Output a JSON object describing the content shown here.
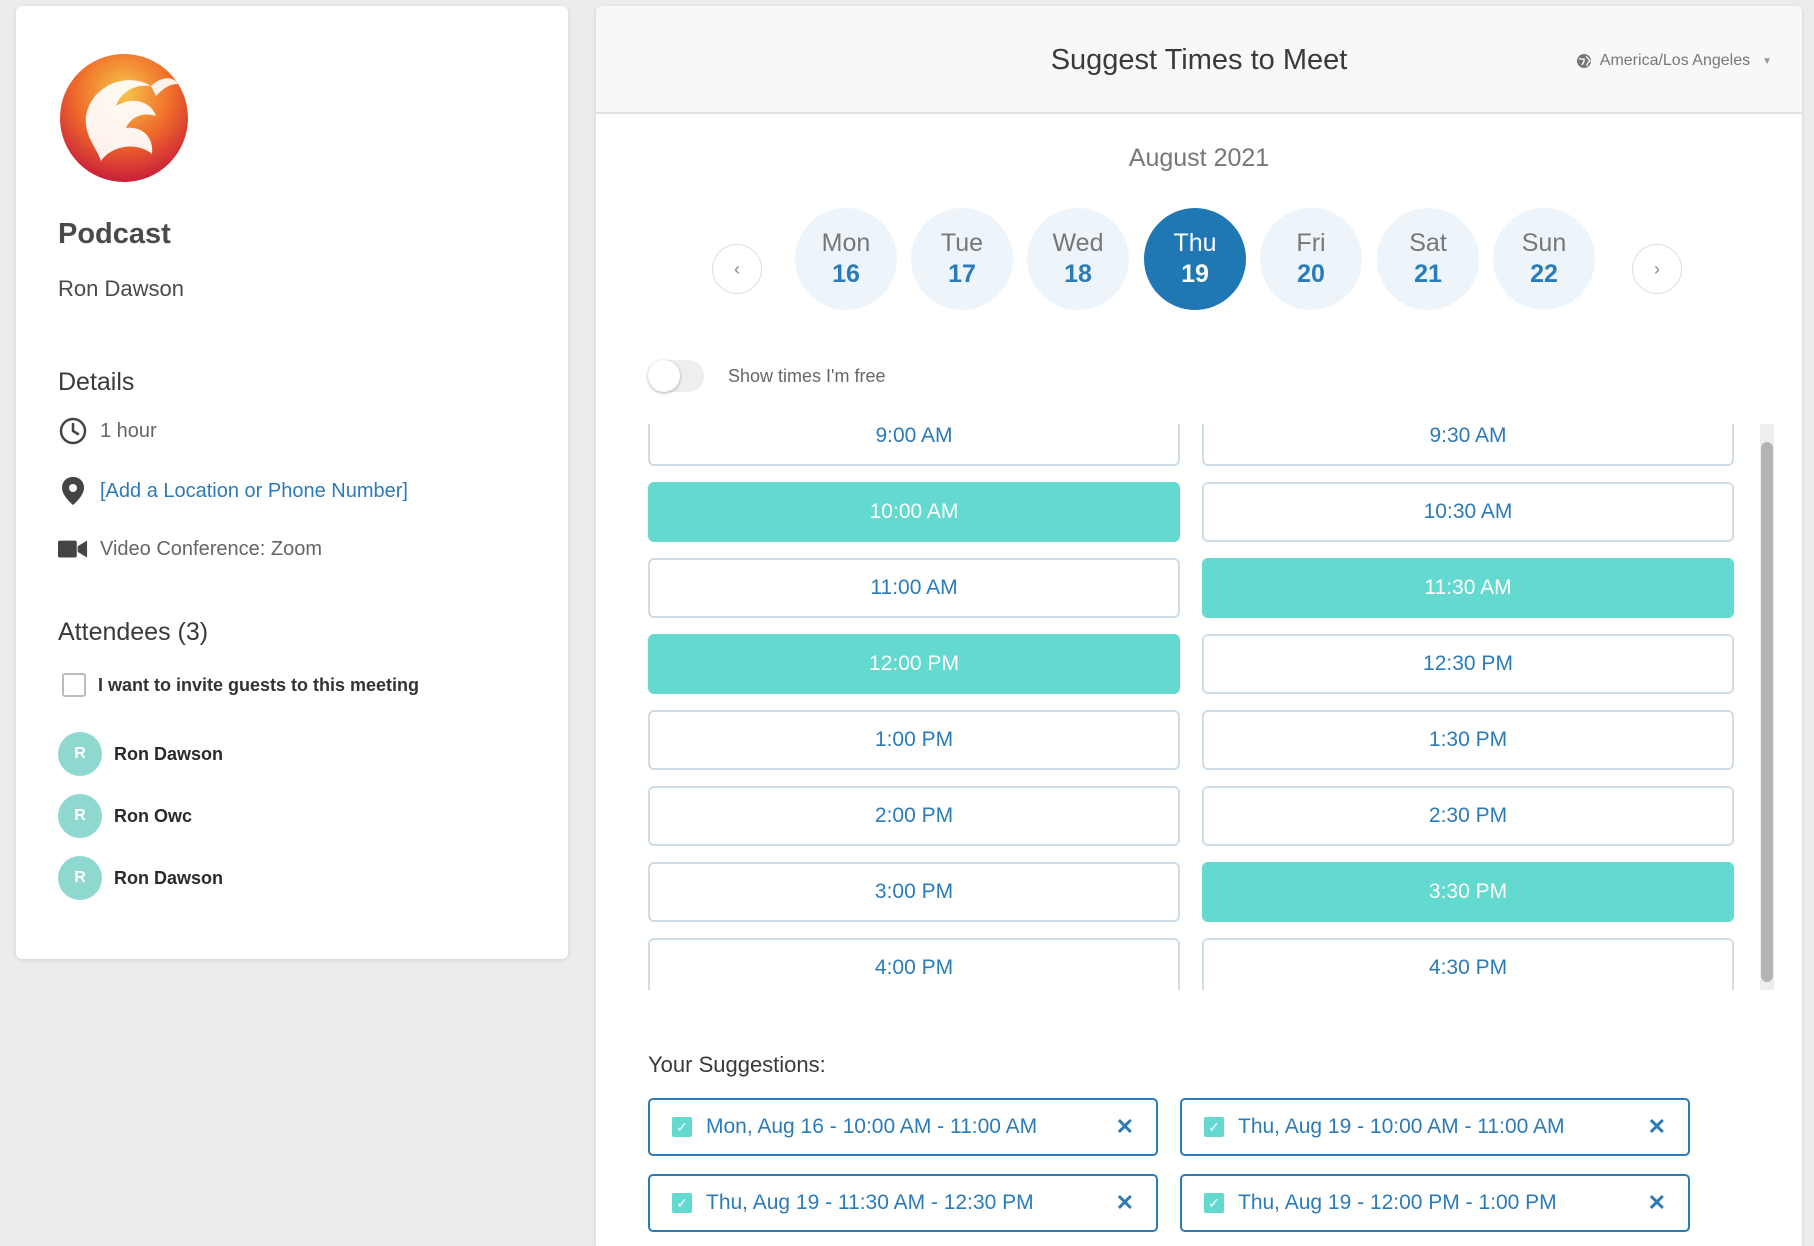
{
  "event": {
    "title": "Podcast",
    "host": "Ron Dawson"
  },
  "details": {
    "heading": "Details",
    "duration": "1 hour",
    "location_link": "[Add a Location or Phone Number]",
    "conference": "Video Conference: Zoom"
  },
  "attendees": {
    "heading": "Attendees (3)",
    "invite_label": "I want to invite guests to this meeting",
    "list": [
      {
        "initial": "R",
        "name": "Ron Dawson"
      },
      {
        "initial": "R",
        "name": "Ron Owc"
      },
      {
        "initial": "R",
        "name": "Ron Dawson"
      }
    ]
  },
  "header": {
    "title": "Suggest Times to Meet",
    "timezone": "America/Los Angeles"
  },
  "calendar": {
    "month": "August 2021",
    "prev_icon": "‹",
    "next_icon": "›",
    "days": [
      {
        "name": "Mon",
        "num": "16"
      },
      {
        "name": "Tue",
        "num": "17"
      },
      {
        "name": "Wed",
        "num": "18"
      },
      {
        "name": "Thu",
        "num": "19"
      },
      {
        "name": "Fri",
        "num": "20"
      },
      {
        "name": "Sat",
        "num": "21"
      },
      {
        "name": "Sun",
        "num": "22"
      }
    ],
    "selected_day": "Thu 19"
  },
  "toggle": {
    "label": "Show times I'm free",
    "on": false
  },
  "slots": [
    [
      "9:00 AM",
      "9:30 AM"
    ],
    [
      "10:00 AM",
      "10:30 AM"
    ],
    [
      "11:00 AM",
      "11:30 AM"
    ],
    [
      "12:00 PM",
      "12:30 PM"
    ],
    [
      "1:00 PM",
      "1:30 PM"
    ],
    [
      "2:00 PM",
      "2:30 PM"
    ],
    [
      "3:00 PM",
      "3:30 PM"
    ],
    [
      "4:00 PM",
      "4:30 PM"
    ]
  ],
  "selected_slots": [
    "10:00 AM",
    "11:30 AM",
    "12:00 PM",
    "3:30 PM"
  ],
  "suggestions": {
    "label": "Your Suggestions:",
    "items": [
      "Mon, Aug 16 - 10:00 AM - 11:00 AM",
      "Thu, Aug 19 - 10:00 AM - 11:00 AM",
      "Thu, Aug 19 - 11:30 AM - 12:30 PM",
      "Thu, Aug 19 - 12:00 PM - 1:00 PM"
    ]
  },
  "colors": {
    "accent": "#2b7bb9",
    "selected_slot": "#63d9cf",
    "selected_day": "#1f78b4"
  },
  "icons": {
    "clock": "clock-icon",
    "location": "map-pin-icon",
    "video": "video-camera-icon",
    "globe": "globe-icon",
    "remove": "close-icon",
    "check": "checkbox-checked-icon"
  }
}
